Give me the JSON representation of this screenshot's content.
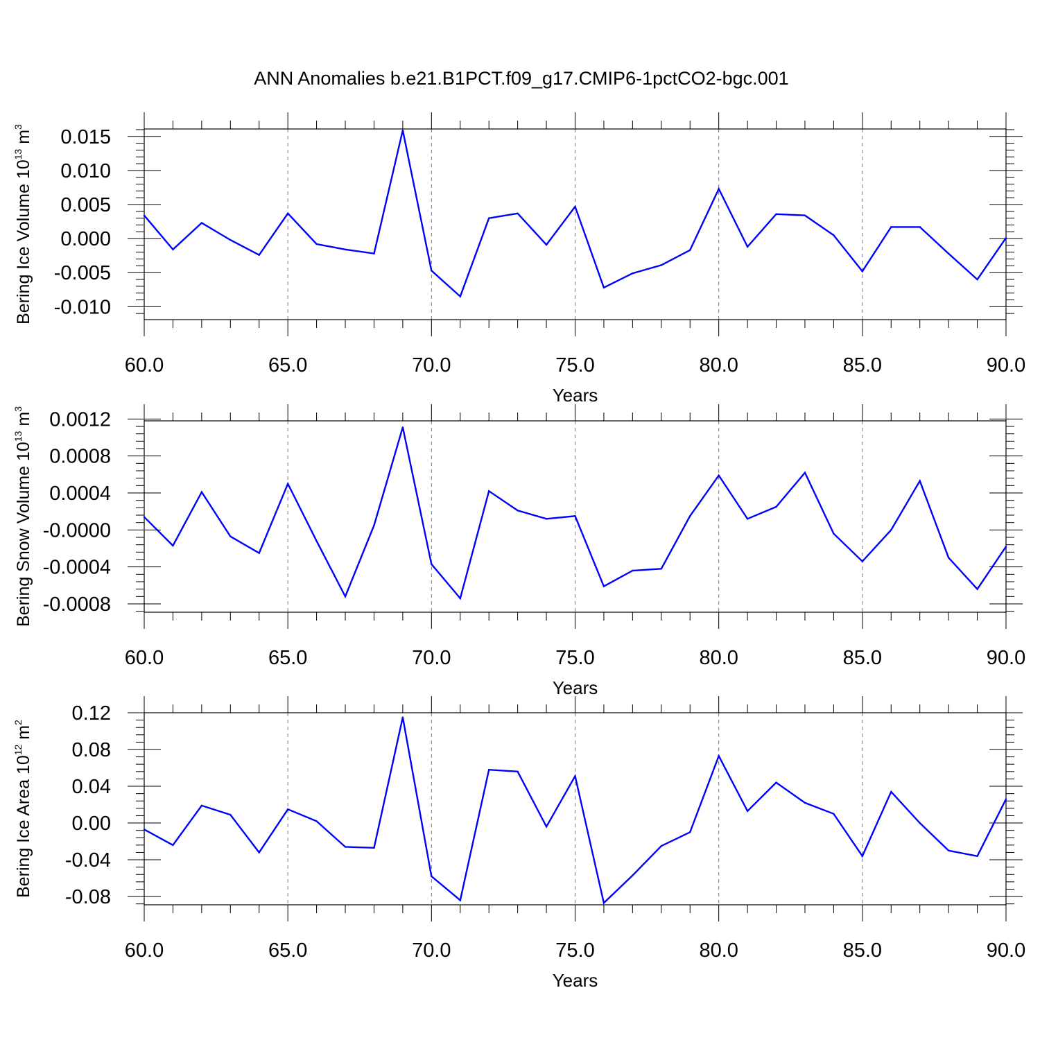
{
  "title": "ANN Anomalies b.e21.B1PCT.f09_g17.CMIP6-1pctCO2-bgc.001",
  "colors": {
    "line": "#0000ff",
    "axis": "#000000",
    "grid": "#777777"
  },
  "chart_data": [
    {
      "type": "line",
      "ylabel": {
        "text": "Bering Ice Volume 10",
        "sup": "13",
        "unit": " m",
        "unit_sup": "3"
      },
      "xlabel": "Years",
      "xlim": [
        60,
        90
      ],
      "ylim": [
        -0.0119,
        0.0161
      ],
      "x_ticks": [
        "60.0",
        "65.0",
        "70.0",
        "75.0",
        "80.0",
        "85.0",
        "90.0"
      ],
      "y_ticks": [
        {
          "v": 0.015,
          "label": "0.015"
        },
        {
          "v": 0.01,
          "label": "0.010"
        },
        {
          "v": 0.005,
          "label": "0.005"
        },
        {
          "v": 0.0,
          "label": "0.000"
        },
        {
          "v": -0.005,
          "label": "-0.005"
        },
        {
          "v": -0.01,
          "label": "-0.010"
        }
      ],
      "x": [
        60,
        61,
        62,
        63,
        64,
        65,
        66,
        67,
        68,
        69,
        70,
        71,
        72,
        73,
        74,
        75,
        76,
        77,
        78,
        79,
        80,
        81,
        82,
        83,
        84,
        85,
        86,
        87,
        88,
        89,
        90
      ],
      "y": [
        0.0034,
        -0.0016,
        0.0023,
        -0.0002,
        -0.0024,
        0.0037,
        -0.0008,
        -0.0016,
        -0.0022,
        0.0159,
        -0.0047,
        -0.0085,
        0.003,
        0.0037,
        -0.0009,
        0.0047,
        -0.0072,
        -0.0051,
        -0.0039,
        -0.0017,
        0.0073,
        -0.0012,
        0.0036,
        0.0034,
        0.0005,
        -0.0048,
        0.0017,
        0.0017,
        -0.0022,
        -0.006,
        0.0001
      ]
    },
    {
      "type": "line",
      "ylabel": {
        "text": "Bering Snow Volume 10",
        "sup": "13",
        "unit": " m",
        "unit_sup": "3"
      },
      "xlabel": "Years",
      "xlim": [
        60,
        90
      ],
      "ylim": [
        -0.00089,
        0.00118
      ],
      "x_ticks": [
        "60.0",
        "65.0",
        "70.0",
        "75.0",
        "80.0",
        "85.0",
        "90.0"
      ],
      "y_ticks": [
        {
          "v": 0.0012,
          "label": "0.0012"
        },
        {
          "v": 0.0008,
          "label": "0.0008"
        },
        {
          "v": 0.0004,
          "label": "0.0004"
        },
        {
          "v": 0.0,
          "label": "-0.0000"
        },
        {
          "v": -0.0004,
          "label": "-0.0004"
        },
        {
          "v": -0.0008,
          "label": "-0.0008"
        }
      ],
      "x": [
        60,
        61,
        62,
        63,
        64,
        65,
        66,
        67,
        68,
        69,
        70,
        71,
        72,
        73,
        74,
        75,
        76,
        77,
        78,
        79,
        80,
        81,
        82,
        83,
        84,
        85,
        86,
        87,
        88,
        89,
        90
      ],
      "y": [
        0.00014,
        -0.00017,
        0.00041,
        -7e-05,
        -0.00025,
        0.0005,
        -0.00012,
        -0.00072,
        5e-05,
        0.00111,
        -0.00037,
        -0.00074,
        0.00042,
        0.00021,
        0.00012,
        0.00015,
        -0.00061,
        -0.00044,
        -0.00042,
        0.00015,
        0.00059,
        0.00012,
        0.00025,
        0.00062,
        -4e-05,
        -0.00034,
        0.0,
        0.00053,
        -0.0003,
        -0.00064,
        -0.00018
      ]
    },
    {
      "type": "line",
      "ylabel": {
        "text": "Bering Ice Area 10",
        "sup": "12",
        "unit": " m",
        "unit_sup": "2"
      },
      "xlabel": "Years",
      "xlim": [
        60,
        90
      ],
      "ylim": [
        -0.089,
        0.12
      ],
      "x_ticks": [
        "60.0",
        "65.0",
        "70.0",
        "75.0",
        "80.0",
        "85.0",
        "90.0"
      ],
      "y_ticks": [
        {
          "v": 0.12,
          "label": "0.12"
        },
        {
          "v": 0.08,
          "label": "0.08"
        },
        {
          "v": 0.04,
          "label": "0.04"
        },
        {
          "v": 0.0,
          "label": "0.00"
        },
        {
          "v": -0.04,
          "label": "-0.04"
        },
        {
          "v": -0.08,
          "label": "-0.08"
        }
      ],
      "x": [
        60,
        61,
        62,
        63,
        64,
        65,
        66,
        67,
        68,
        69,
        70,
        71,
        72,
        73,
        74,
        75,
        76,
        77,
        78,
        79,
        80,
        81,
        82,
        83,
        84,
        85,
        86,
        87,
        88,
        89,
        90
      ],
      "y": [
        -0.007,
        -0.024,
        0.019,
        0.009,
        -0.032,
        0.015,
        0.002,
        -0.026,
        -0.027,
        0.115,
        -0.058,
        -0.084,
        0.058,
        0.056,
        -0.004,
        0.051,
        -0.087,
        -0.057,
        -0.025,
        -0.01,
        0.073,
        0.013,
        0.044,
        0.022,
        0.01,
        -0.036,
        0.034,
        0.0,
        -0.03,
        -0.036,
        0.026
      ]
    }
  ]
}
